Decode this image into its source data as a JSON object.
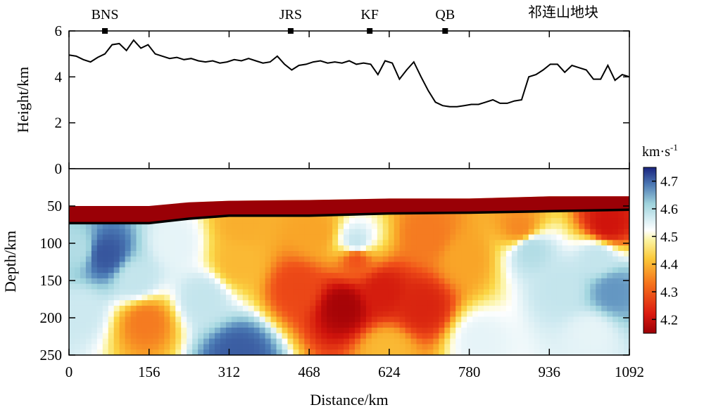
{
  "chart_data": [
    {
      "type": "line",
      "name": "topography",
      "ylabel": "Height/km",
      "ylim": [
        0,
        6
      ],
      "xlim": [
        0,
        1092
      ],
      "yticks": [
        "0",
        "2",
        "4",
        "6"
      ],
      "markers": [
        {
          "label": "BNS",
          "x": 70
        },
        {
          "label": "JRS",
          "x": 432
        },
        {
          "label": "KF",
          "x": 586
        },
        {
          "label": "QB",
          "x": 733
        }
      ],
      "region_label": "祁连山地块",
      "x": [
        0,
        14,
        28,
        42,
        56,
        70,
        84,
        98,
        112,
        126,
        140,
        154,
        168,
        182,
        196,
        210,
        224,
        238,
        252,
        266,
        280,
        294,
        308,
        322,
        336,
        350,
        364,
        378,
        392,
        406,
        420,
        434,
        448,
        462,
        476,
        490,
        504,
        518,
        532,
        546,
        560,
        574,
        588,
        602,
        616,
        630,
        644,
        658,
        672,
        686,
        700,
        714,
        728,
        742,
        756,
        770,
        784,
        798,
        812,
        826,
        840,
        854,
        868,
        882,
        896,
        910,
        924,
        938,
        952,
        966,
        980,
        994,
        1008,
        1022,
        1036,
        1050,
        1064,
        1078,
        1092
      ],
      "y": [
        4.95,
        4.9,
        4.75,
        4.65,
        4.85,
        5.0,
        5.4,
        5.45,
        5.15,
        5.6,
        5.25,
        5.4,
        5.0,
        4.9,
        4.8,
        4.85,
        4.75,
        4.8,
        4.7,
        4.65,
        4.7,
        4.6,
        4.65,
        4.75,
        4.7,
        4.8,
        4.7,
        4.6,
        4.65,
        4.9,
        4.55,
        4.3,
        4.5,
        4.55,
        4.65,
        4.7,
        4.6,
        4.65,
        4.6,
        4.7,
        4.55,
        4.6,
        4.55,
        4.1,
        4.7,
        4.6,
        3.9,
        4.3,
        4.65,
        4.0,
        3.4,
        2.9,
        2.75,
        2.7,
        2.7,
        2.75,
        2.8,
        2.8,
        2.9,
        3.0,
        2.85,
        2.85,
        2.95,
        3.0,
        4.0,
        4.1,
        4.3,
        4.55,
        4.55,
        4.2,
        4.5,
        4.4,
        4.3,
        3.9,
        3.9,
        4.5,
        3.85,
        4.1,
        4.0
      ]
    },
    {
      "type": "heatmap",
      "name": "shear-wave velocity section",
      "xlabel": "Distance/km",
      "ylabel": "Depth/km",
      "xlim": [
        0,
        1092
      ],
      "ylim": [
        0,
        250
      ],
      "xticks": [
        "0",
        "156",
        "312",
        "468",
        "624",
        "780",
        "936",
        "1092"
      ],
      "yticks": [
        "50",
        "100",
        "150",
        "200",
        "250"
      ],
      "colorbar": {
        "title": "km·s",
        "title_sup": "-1",
        "min": 4.15,
        "max": 4.75,
        "ticks": [
          "4.2",
          "4.3",
          "4.4",
          "4.5",
          "4.6",
          "4.7"
        ]
      },
      "moho": {
        "x": [
          0,
          156,
          234,
          312,
          468,
          624,
          780,
          936,
          1092
        ],
        "depth": [
          73,
          73,
          67,
          63,
          63,
          60,
          59,
          57,
          55
        ]
      },
      "crust_top": {
        "x": [
          0,
          156,
          234,
          312,
          468,
          624,
          780,
          936,
          1092
        ],
        "depth": [
          50,
          50,
          45,
          43,
          42,
          40,
          40,
          37,
          37
        ]
      },
      "anomalies": [
        {
          "x": 70,
          "depth": 115,
          "value": 4.68
        },
        {
          "x": 18,
          "depth": 108,
          "value": 4.52
        },
        {
          "x": 205,
          "depth": 100,
          "value": 4.47
        },
        {
          "x": 130,
          "depth": 148,
          "value": 4.5
        },
        {
          "x": 20,
          "depth": 190,
          "value": 4.49
        },
        {
          "x": 150,
          "depth": 205,
          "value": 4.3
        },
        {
          "x": 330,
          "depth": 250,
          "value": 4.67
        },
        {
          "x": 262,
          "depth": 175,
          "value": 4.5
        },
        {
          "x": 330,
          "depth": 125,
          "value": 4.35
        },
        {
          "x": 340,
          "depth": 75,
          "value": 4.34
        },
        {
          "x": 480,
          "depth": 85,
          "value": 4.33
        },
        {
          "x": 535,
          "depth": 185,
          "value": 4.16
        },
        {
          "x": 610,
          "depth": 165,
          "value": 4.21
        },
        {
          "x": 690,
          "depth": 185,
          "value": 4.22
        },
        {
          "x": 560,
          "depth": 120,
          "value": 4.27
        },
        {
          "x": 445,
          "depth": 160,
          "value": 4.26
        },
        {
          "x": 700,
          "depth": 90,
          "value": 4.3
        },
        {
          "x": 560,
          "depth": 100,
          "value": 4.5
        },
        {
          "x": 770,
          "depth": 120,
          "value": 4.33
        },
        {
          "x": 900,
          "depth": 108,
          "value": 4.52
        },
        {
          "x": 1030,
          "depth": 120,
          "value": 4.5
        },
        {
          "x": 1060,
          "depth": 165,
          "value": 4.6
        },
        {
          "x": 960,
          "depth": 160,
          "value": 4.5
        },
        {
          "x": 1020,
          "depth": 220,
          "value": 4.47
        },
        {
          "x": 1050,
          "depth": 75,
          "value": 4.2
        },
        {
          "x": 880,
          "depth": 80,
          "value": 4.31
        },
        {
          "x": 620,
          "depth": 245,
          "value": 4.35
        },
        {
          "x": 800,
          "depth": 230,
          "value": 4.47
        }
      ]
    }
  ]
}
